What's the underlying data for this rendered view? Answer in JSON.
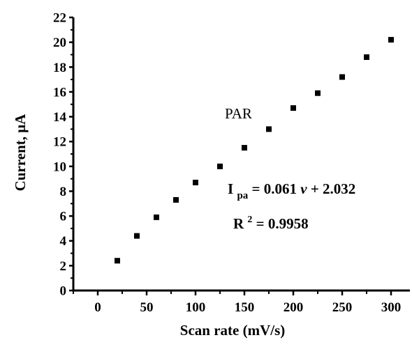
{
  "chart_data": {
    "type": "scatter",
    "title": "",
    "xlabel": "Scan rate (mV/s)",
    "ylabel": "Current, μA",
    "xlim": [
      -25,
      312
    ],
    "ylim": [
      0,
      22
    ],
    "xticks": [
      0,
      50,
      100,
      150,
      200,
      250,
      300
    ],
    "yticks": [
      0,
      2,
      4,
      6,
      8,
      10,
      12,
      14,
      16,
      18,
      20,
      22
    ],
    "grid": false,
    "series": [
      {
        "marker": "square",
        "color": "#000000",
        "x": [
          20,
          40,
          60,
          80,
          100,
          125,
          150,
          175,
          200,
          225,
          250,
          275,
          300
        ],
        "y": [
          2.4,
          4.4,
          5.9,
          7.3,
          8.7,
          10.0,
          11.5,
          13.0,
          14.7,
          15.9,
          17.2,
          18.8,
          20.2
        ]
      }
    ],
    "annotations": {
      "label": "PAR",
      "equation_lhs": "I",
      "equation_sub": "pa",
      "equation_rhs_a": " = 0.061",
      "equation_var": "v",
      "equation_rhs_b": " + 2.032",
      "r2_base": "R",
      "r2_sup": "2",
      "r2_value": " = 0.9958"
    }
  }
}
